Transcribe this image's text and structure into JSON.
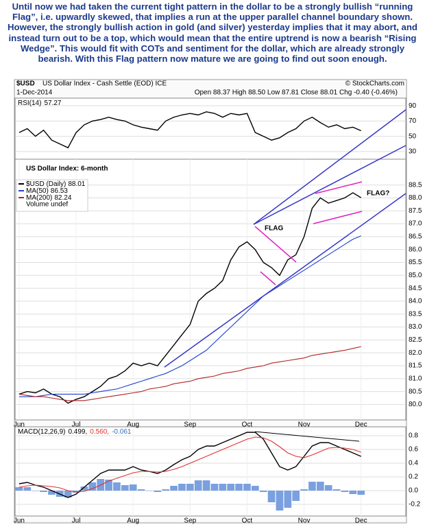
{
  "text": "Until now we had taken the current tight pattern in the dollar to be a strongly bullish “running Flag”, i.e. upwardly skewed, that implies a run at the upper parallel channel boundary shown. However, the strongly bullish action in gold (and silver) yesterday implies that it may abort, and instead turn out to be a top, which would mean that the entire uptrend is now a bearish “Rising Wedge”. This would fit with COTs and sentiment for the dollar, which are already strongly bearish. With this Flag pattern now mature we are going to find out soon enough.",
  "header": {
    "symbol": "$USD",
    "name": "US Dollar Index - Cash Settle (EOD) ICE",
    "credit": "© StockCharts.com",
    "date": "1-Dec-2014",
    "quote": "Open 88.37 High 88.50 Low 87.81 Close 88.01 Chg -0.40 (-0.46%)"
  },
  "chart_data": [
    {
      "type": "line",
      "ylim": [
        20,
        100
      ],
      "yticks": [
        90,
        70,
        50,
        30
      ],
      "grid": true,
      "series": [
        {
          "name": "RSI(14)",
          "color": "#000000",
          "values": [
            55,
            60,
            50,
            58,
            45,
            40,
            35,
            55,
            65,
            70,
            72,
            75,
            72,
            70,
            65,
            62,
            60,
            58,
            70,
            75,
            78,
            80,
            78,
            82,
            80,
            75,
            80,
            78,
            80,
            55,
            50,
            45,
            48,
            55,
            60,
            70,
            75,
            68,
            62,
            65,
            60,
            62,
            57.27,
            null,
            null,
            null,
            null,
            null
          ]
        }
      ]
    },
    {
      "type": "line",
      "ylim": [
        79.4,
        89.5
      ],
      "grid": true,
      "yticks": [
        {
          "value": 88.5,
          "label": "88.5"
        },
        {
          "value": 88,
          "label": "88.0"
        },
        {
          "value": 87.5,
          "label": "87.5"
        },
        {
          "value": 87,
          "label": "87.0"
        },
        {
          "value": 86.5,
          "label": "86.5"
        },
        {
          "value": 86,
          "label": "86.0"
        },
        {
          "value": 85.5,
          "label": "85.5"
        },
        {
          "value": 85,
          "label": "85.0"
        },
        {
          "value": 84.5,
          "label": "84.5"
        },
        {
          "value": 84,
          "label": "84.0"
        },
        {
          "value": 83.5,
          "label": "83.5"
        },
        {
          "value": 83,
          "label": "83.0"
        },
        {
          "value": 82.5,
          "label": "82.5"
        },
        {
          "value": 82,
          "label": "82.0"
        },
        {
          "value": 81.5,
          "label": "81.5"
        },
        {
          "value": 81,
          "label": "81.0"
        },
        {
          "value": 80.5,
          "label": "80.5"
        },
        {
          "value": 80,
          "label": "80.0"
        }
      ],
      "categories": [
        "Jun",
        null,
        null,
        null,
        null,
        null,
        null,
        "Jul",
        null,
        null,
        null,
        null,
        null,
        null,
        "Aug",
        null,
        null,
        null,
        null,
        null,
        null,
        "Sep",
        null,
        null,
        null,
        null,
        null,
        null,
        "Oct",
        null,
        null,
        null,
        null,
        null,
        null,
        "Nov",
        null,
        null,
        null,
        null,
        null,
        null,
        "Dec",
        null,
        null,
        null,
        null,
        null
      ],
      "annotations": [
        "US Dollar Index: 6-month",
        "FLAG",
        "FLAG?"
      ],
      "legend_note": "Volume undef",
      "series": [
        {
          "name": "$USD (Daily)",
          "color": "#000000",
          "values": [
            80.4,
            80.5,
            80.45,
            80.6,
            80.4,
            80.3,
            80.05,
            80.2,
            80.3,
            80.5,
            80.7,
            81.0,
            81.1,
            81.3,
            81.6,
            81.5,
            81.6,
            81.5,
            81.9,
            82.3,
            82.7,
            83.1,
            84.0,
            84.3,
            84.5,
            84.8,
            85.6,
            86.1,
            86.3,
            86.0,
            85.5,
            85.3,
            85.0,
            85.6,
            85.8,
            86.5,
            87.6,
            88.0,
            87.8,
            87.9,
            88.0,
            88.2,
            88.01,
            null,
            null,
            null,
            null,
            null
          ]
        },
        {
          "name": "MA(50)",
          "color": "#1f3fd0",
          "values": [
            80.3,
            80.3,
            80.3,
            80.35,
            80.4,
            80.4,
            80.4,
            80.4,
            80.4,
            80.45,
            80.5,
            80.55,
            80.6,
            80.7,
            80.8,
            80.9,
            81.0,
            81.1,
            81.2,
            81.35,
            81.5,
            81.7,
            81.9,
            82.1,
            82.4,
            82.7,
            83.0,
            83.3,
            83.6,
            83.9,
            84.2,
            84.4,
            84.6,
            84.8,
            85.0,
            85.2,
            85.4,
            85.6,
            85.8,
            86.0,
            86.2,
            86.4,
            86.53,
            null,
            null,
            null,
            null,
            null
          ]
        },
        {
          "name": "MA(200)",
          "color": "#b22222",
          "values": [
            80.4,
            80.35,
            80.3,
            80.3,
            80.25,
            80.2,
            80.15,
            80.15,
            80.15,
            80.2,
            80.25,
            80.3,
            80.35,
            80.4,
            80.45,
            80.5,
            80.6,
            80.65,
            80.7,
            80.8,
            80.85,
            80.9,
            81.0,
            81.05,
            81.1,
            81.2,
            81.25,
            81.3,
            81.4,
            81.45,
            81.5,
            81.6,
            81.65,
            81.7,
            81.75,
            81.8,
            81.9,
            81.95,
            82.0,
            82.05,
            82.1,
            82.17,
            82.24,
            null,
            null,
            null,
            null,
            null
          ]
        }
      ]
    },
    {
      "type": "line",
      "ylim": [
        -0.37,
        0.93
      ],
      "grid": true,
      "yticks": [
        0.8,
        0.6,
        0.4,
        0.2,
        {
          "value": 0,
          "label": "0.0"
        },
        -0.2
      ],
      "categories": [
        "Jun",
        null,
        null,
        null,
        null,
        null,
        null,
        "Jul",
        null,
        null,
        null,
        null,
        null,
        null,
        "Aug",
        null,
        null,
        null,
        null,
        null,
        null,
        "Sep",
        null,
        null,
        null,
        null,
        null,
        null,
        "Oct",
        null,
        null,
        null,
        null,
        null,
        null,
        "Nov",
        null,
        null,
        null,
        null,
        null,
        null,
        "Dec",
        null,
        null,
        null,
        null,
        null
      ],
      "label": "MACD(12,26,9)",
      "series": [
        {
          "name": "MACD",
          "color": "#000000",
          "readout_label": "0.499,",
          "values": [
            0.1,
            0.12,
            0.08,
            0.05,
            0.0,
            -0.05,
            -0.1,
            -0.05,
            0.05,
            0.15,
            0.25,
            0.3,
            0.3,
            0.3,
            0.35,
            0.3,
            0.28,
            0.25,
            0.3,
            0.38,
            0.45,
            0.5,
            0.6,
            0.65,
            0.65,
            0.7,
            0.75,
            0.8,
            0.85,
            0.85,
            0.75,
            0.55,
            0.35,
            0.3,
            0.35,
            0.5,
            0.65,
            0.7,
            0.7,
            0.65,
            0.6,
            0.55,
            0.499,
            null,
            null,
            null,
            null,
            null
          ]
        },
        {
          "name": "Signal",
          "color": "#e03030",
          "readout_label": "0.560,",
          "values": [
            0.05,
            0.07,
            0.08,
            0.07,
            0.06,
            0.04,
            0.0,
            -0.02,
            -0.01,
            0.03,
            0.08,
            0.14,
            0.18,
            0.22,
            0.26,
            0.28,
            0.28,
            0.27,
            0.28,
            0.31,
            0.35,
            0.4,
            0.45,
            0.5,
            0.55,
            0.6,
            0.65,
            0.7,
            0.75,
            0.78,
            0.77,
            0.72,
            0.64,
            0.55,
            0.5,
            0.48,
            0.52,
            0.57,
            0.62,
            0.63,
            0.62,
            0.6,
            0.56,
            null,
            null,
            null,
            null,
            null
          ]
        },
        {
          "name": "Histogram",
          "type": "bar",
          "color": "#7aa0e0",
          "readout_label": "-0.061",
          "values": [
            0.05,
            0.05,
            0,
            -0.02,
            -0.06,
            -0.09,
            -0.1,
            -0.03,
            0.06,
            0.12,
            0.17,
            0.16,
            0.12,
            0.08,
            0.09,
            0.02,
            0,
            -0.02,
            0.02,
            0.07,
            0.1,
            0.1,
            0.15,
            0.15,
            0.1,
            0.1,
            0.1,
            0.1,
            0.1,
            0.07,
            -0.02,
            -0.17,
            -0.29,
            -0.25,
            -0.15,
            0.02,
            0.13,
            0.13,
            0.08,
            0.02,
            -0.02,
            -0.05,
            -0.061,
            null,
            null,
            null,
            null,
            null
          ]
        }
      ]
    }
  ]
}
